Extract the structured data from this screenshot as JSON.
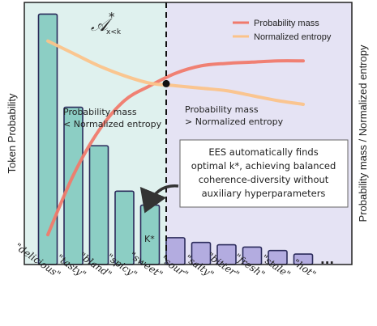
{
  "chart_data": {
    "type": "bar",
    "ylabel": "Token Probability",
    "y2label": "Probability mass / Normalized entropy",
    "categories": [
      "\"delicious\"",
      "\"tasty\"",
      "\"bland\"",
      "\"spicy\"",
      "\"sweet\"",
      "\"sour\"",
      "\"salty\"",
      "\"bitter\"",
      "\"fresh\"",
      "\"stale\"",
      "\"hot\""
    ],
    "values": [
      0.215,
      0.135,
      0.102,
      0.063,
      0.051,
      0.023,
      0.019,
      0.017,
      0.015,
      0.012,
      0.009
    ],
    "ylim": [
      0,
      0.225
    ],
    "bar_colors": {
      "selected": "#8ccec4",
      "rest": "#b3ace0",
      "edge": "#2a2a5a"
    },
    "background_colors": {
      "selected_region": "#dff1ee",
      "rest_region": "#e5e3f4"
    },
    "region_split_after_index": 4,
    "region_label_math": "𝒜",
    "region_label_superscript": "*",
    "region_label_subscript": "x<k",
    "k_label": "K*",
    "ellipsis": "...",
    "series": [
      {
        "name": "Probability mass",
        "color": "#f07a6c",
        "values": [
          0.12,
          0.36,
          0.54,
          0.66,
          0.72,
          0.77,
          0.8,
          0.81,
          0.815,
          0.82,
          0.82
        ]
      },
      {
        "name": "Normalized entropy",
        "color": "#fbc38a",
        "values": [
          0.9,
          0.85,
          0.8,
          0.76,
          0.73,
          0.72,
          0.71,
          0.7,
          0.68,
          0.66,
          0.645
        ]
      }
    ],
    "line_ylim": [
      0,
      1
    ],
    "legend_position": "top-right",
    "annotations": {
      "left_region": [
        "Probability mass",
        "< Normalized entropy"
      ],
      "right_region": [
        "Probability mass",
        "> Normalized entropy"
      ],
      "callout": [
        "EES automatically finds",
        "optimal k*, achieving balanced",
        "coherence-diversity without",
        "auxiliary hyperparameters"
      ]
    }
  }
}
